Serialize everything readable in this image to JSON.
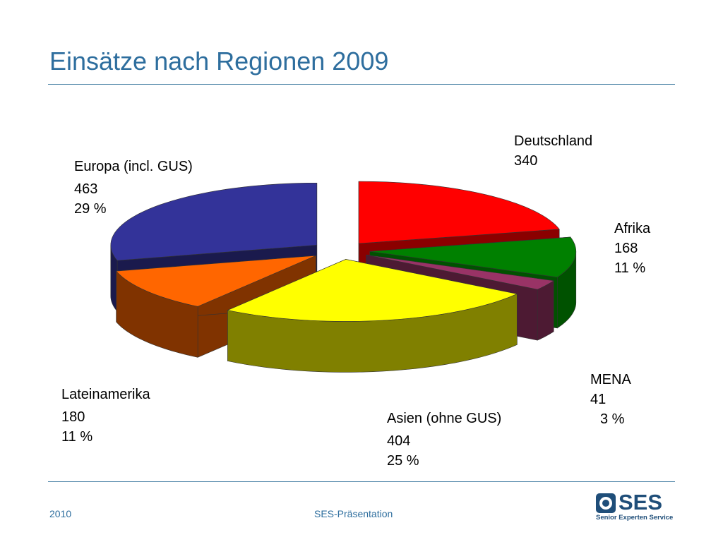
{
  "slide": {
    "title": "Einsätze nach Regionen 2009",
    "footer_year": "2010",
    "footer_center": "SES-Präsentation"
  },
  "logo": {
    "name": "SES",
    "tagline": "Senior Experten Service"
  },
  "colors": {
    "title": "#2e6e9e",
    "rule": "#4f86a8",
    "logo": "#1f4e79"
  },
  "chart_data": {
    "type": "pie",
    "style": "3d-exploded",
    "title": "Einsätze nach Regionen 2009",
    "slices": [
      {
        "name": "Deutschland",
        "value": 340,
        "percent": "",
        "color": "#ff0000",
        "side": "#8b0000"
      },
      {
        "name": "Afrika",
        "value": 168,
        "percent": "11 %",
        "color": "#008000",
        "side": "#005200"
      },
      {
        "name": "MENA",
        "value": 41,
        "percent": "3 %",
        "color": "#993366",
        "side": "#4d1a33"
      },
      {
        "name": "Asien (ohne GUS)",
        "value": 404,
        "percent": "25 %",
        "color": "#ffff00",
        "side": "#808000"
      },
      {
        "name": "Lateinamerika",
        "value": 180,
        "percent": "11 %",
        "color": "#ff6600",
        "side": "#803300"
      },
      {
        "name": "Europa (incl. GUS)",
        "value": 463,
        "percent": "29 %",
        "color": "#333399",
        "side": "#1a1a4d"
      }
    ]
  }
}
